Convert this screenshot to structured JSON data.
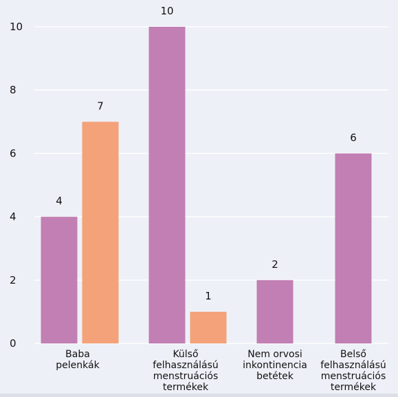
{
  "chart_data": {
    "type": "bar",
    "categories": [
      [
        "Baba",
        "pelenkák"
      ],
      [
        "Külső",
        "felhasználású",
        "menstruációs",
        "termékek"
      ],
      [
        "Nem orvosi",
        "inkontinencia",
        "betétek"
      ],
      [
        "Belső",
        "felhasználású",
        "menstruációs",
        "termékek"
      ]
    ],
    "series": [
      {
        "values": [
          4,
          10,
          2,
          6
        ],
        "color": "#c17fb3"
      },
      {
        "values": [
          7,
          1,
          null,
          null
        ],
        "color": "#f4a27a"
      }
    ],
    "ylim": [
      0,
      10
    ],
    "yticks": [
      0,
      2,
      4,
      6,
      8,
      10
    ],
    "grid": true,
    "legend": "none",
    "title": "",
    "xlabel": "",
    "ylabel": ""
  }
}
